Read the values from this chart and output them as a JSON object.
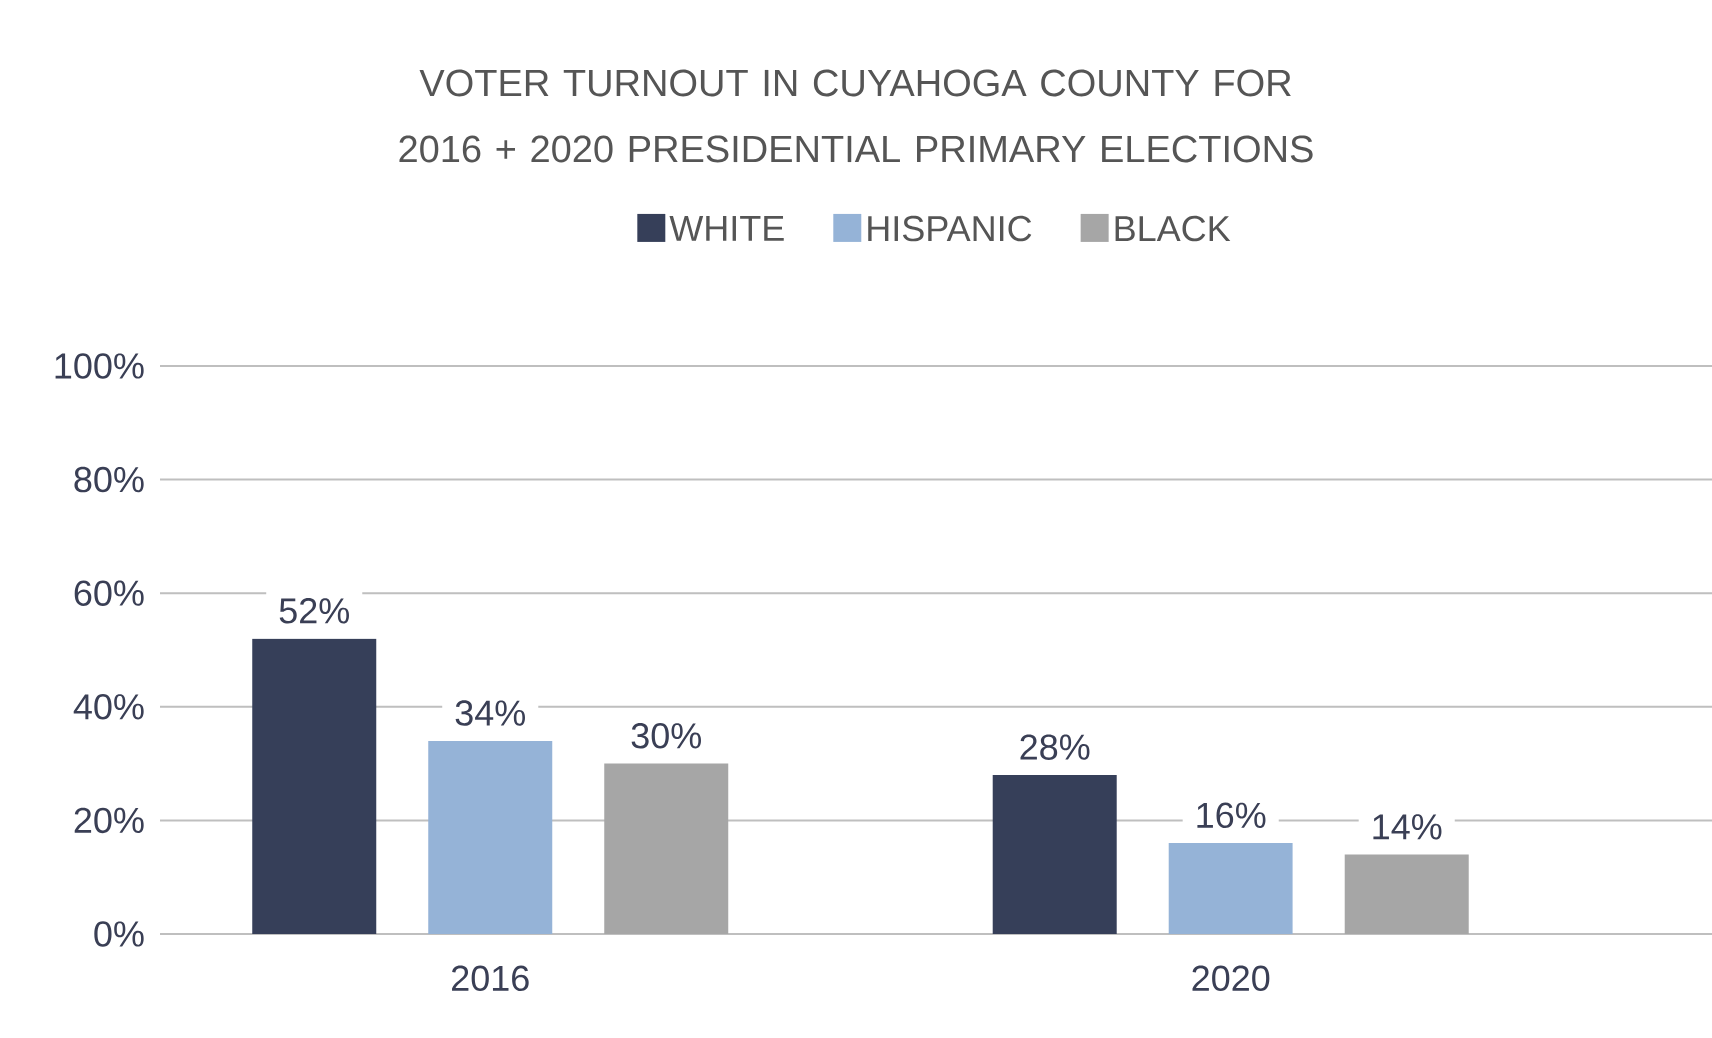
{
  "chart_data": {
    "type": "bar",
    "title": "VOTER TURNOUT IN CUYAHOGA COUNTY FOR 2016 + 2020 PRESIDENTIAL PRIMARY ELECTIONS",
    "categories": [
      "2016",
      "2020"
    ],
    "series": [
      {
        "name": "WHITE",
        "color": "#363f59",
        "values": [
          52,
          28
        ],
        "value_labels": [
          "52%",
          "28%"
        ]
      },
      {
        "name": "HISPANIC",
        "color": "#95b3d7",
        "values": [
          34,
          16
        ],
        "value_labels": [
          "34%",
          "16%"
        ]
      },
      {
        "name": "BLACK",
        "color": "#a6a6a6",
        "values": [
          30,
          14
        ],
        "value_labels": [
          "30%",
          "14%"
        ]
      }
    ],
    "ylim": [
      0,
      100
    ],
    "yticks": [
      {
        "value": 0,
        "label": "0%"
      },
      {
        "value": 20,
        "label": "20%"
      },
      {
        "value": 40,
        "label": "40%"
      },
      {
        "value": 60,
        "label": "60%"
      },
      {
        "value": 80,
        "label": "80%"
      },
      {
        "value": 100,
        "label": "100%"
      }
    ],
    "grid": "y",
    "legend": "top"
  }
}
